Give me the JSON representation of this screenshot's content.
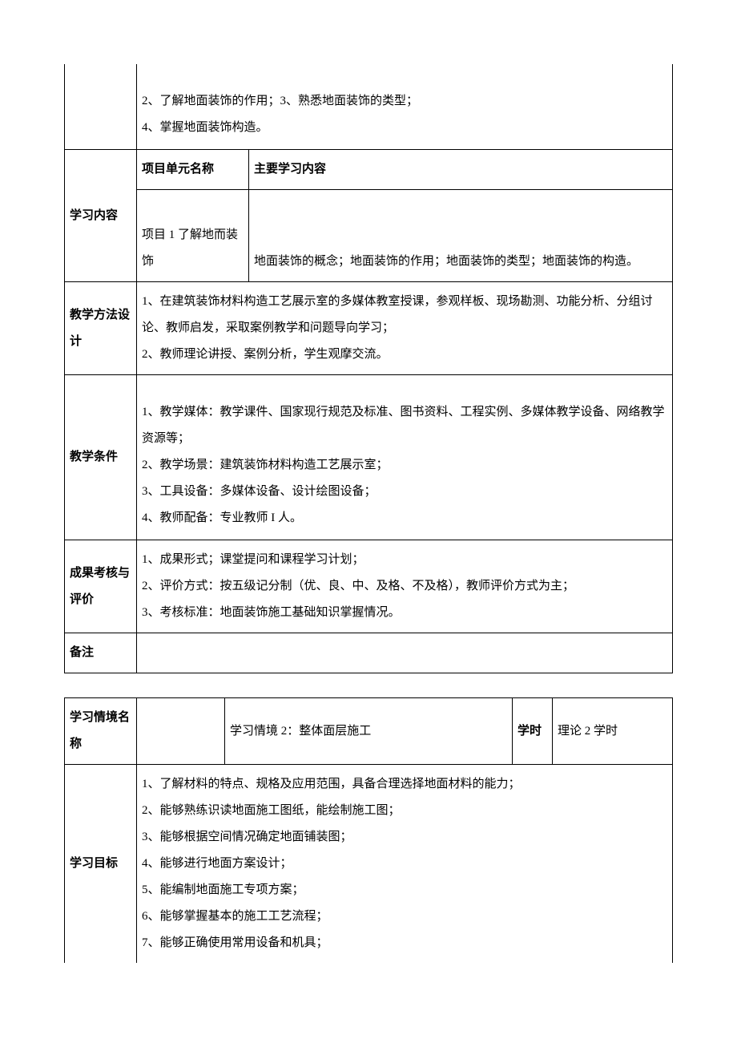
{
  "table1": {
    "row1_content": "2、了解地面装饰的作用；3、熟悉地面装饰的类型；\n4、掌握地面装饰构造。",
    "study_content_label": "学习内容",
    "unit_name_label": "项目单元名称",
    "main_content_label": "主要学习内容",
    "unit_name": "项目 1 了解地而装饰",
    "main_content": "地面装饰的概念；地面装饰的作用；地面装饰的类型；地面装饰的构造。",
    "teach_method_label": "教学方法设计",
    "teach_method_content": "1、在建筑装饰材料构造工艺展示室的多媒体教室授课，参观样板、现场勘测、功能分析、分组讨论、教师启发，采取案例教学和问题导向学习；\n2、教师理论讲授、案例分析，学生观摩交流。",
    "teach_cond_label": "教学条件",
    "teach_cond_content": "1、教学媒体：教学课件、国家现行规范及标准、图书资料、工程实例、多媒体教学设备、网络教学资源等；\n2、教学场景：建筑装饰材料构造工艺展示室；\n3、工具设备：多媒体设备、设计绘图设备；\n4、教师配备：专业教师 I 人。",
    "assess_label": "成果考核与评价",
    "assess_content": "1、成果形式；课堂提问和课程学习计划；\n2、评价方式：按五级记分制（优、良、中、及格、不及格），教师评价方式为主；\n3、考核标准：地面装饰施工基础知识掌握情况。",
    "remark_label": "备注",
    "remark_content": ""
  },
  "table2": {
    "situation_label": "学习情境名称",
    "situation_name": "学习情境 2：整体面层施工",
    "hours_label": "学时",
    "hours_value": "理论 2 学时",
    "goal_label": "学习目标",
    "goals": "1、了解材料的特点、规格及应用范围，具备合理选择地面材料的能力；\n2、能够熟练识读地面施工图纸，能绘制施工图；\n3、能够根据空间情况确定地面铺装图；\n4、能够进行地面方案设计；\n5、能编制地面施工专项方案；\n6、能够掌握基本的施工工艺流程；\n7、能够正确使用常用设备和机具；"
  },
  "style": {
    "border_color": "#000000",
    "background": "#ffffff",
    "font_size": 15,
    "line_height": 2.2,
    "label_col_width": 90,
    "sub_label_width": 140
  }
}
